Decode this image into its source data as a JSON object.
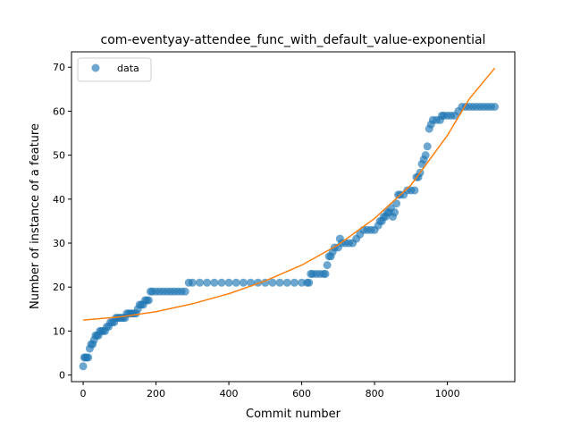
{
  "chart_data": {
    "type": "scatter",
    "title": "com-eventyay-attendee_func_with_default_value-exponential",
    "xlabel": "Commit number",
    "ylabel": "Number of instance of a feature",
    "xlim": [
      -32,
      1185
    ],
    "ylim": [
      -1.5,
      73.5
    ],
    "xticks": [
      0,
      200,
      400,
      600,
      800,
      1000
    ],
    "yticks": [
      0,
      10,
      20,
      30,
      40,
      50,
      60,
      70
    ],
    "grid": false,
    "legend": {
      "position": "upper-left",
      "entries": [
        "data"
      ]
    },
    "colors": {
      "data": "#1f77b4",
      "fit": "#ff7f0e"
    },
    "series": [
      {
        "name": "data",
        "kind": "scatter",
        "points": [
          [
            0,
            2
          ],
          [
            3,
            4
          ],
          [
            6,
            4
          ],
          [
            10,
            4
          ],
          [
            14,
            4
          ],
          [
            18,
            6
          ],
          [
            22,
            7
          ],
          [
            26,
            7
          ],
          [
            30,
            8
          ],
          [
            34,
            9
          ],
          [
            38,
            9
          ],
          [
            42,
            9
          ],
          [
            46,
            10
          ],
          [
            50,
            10
          ],
          [
            55,
            10
          ],
          [
            60,
            10
          ],
          [
            65,
            11
          ],
          [
            70,
            11
          ],
          [
            75,
            12
          ],
          [
            80,
            12
          ],
          [
            85,
            12
          ],
          [
            90,
            13
          ],
          [
            95,
            13
          ],
          [
            100,
            13
          ],
          [
            105,
            13
          ],
          [
            110,
            13
          ],
          [
            115,
            13
          ],
          [
            120,
            14
          ],
          [
            125,
            14
          ],
          [
            130,
            14
          ],
          [
            135,
            14
          ],
          [
            140,
            14
          ],
          [
            145,
            14
          ],
          [
            150,
            15
          ],
          [
            155,
            16
          ],
          [
            160,
            16
          ],
          [
            165,
            16
          ],
          [
            170,
            17
          ],
          [
            175,
            17
          ],
          [
            180,
            17
          ],
          [
            185,
            19
          ],
          [
            190,
            19
          ],
          [
            200,
            19
          ],
          [
            210,
            19
          ],
          [
            220,
            19
          ],
          [
            230,
            19
          ],
          [
            240,
            19
          ],
          [
            250,
            19
          ],
          [
            260,
            19
          ],
          [
            270,
            19
          ],
          [
            280,
            19
          ],
          [
            290,
            21
          ],
          [
            300,
            21
          ],
          [
            320,
            21
          ],
          [
            340,
            21
          ],
          [
            360,
            21
          ],
          [
            380,
            21
          ],
          [
            400,
            21
          ],
          [
            420,
            21
          ],
          [
            440,
            21
          ],
          [
            460,
            21
          ],
          [
            480,
            21
          ],
          [
            500,
            21
          ],
          [
            520,
            21
          ],
          [
            540,
            21
          ],
          [
            560,
            21
          ],
          [
            580,
            21
          ],
          [
            600,
            21
          ],
          [
            615,
            21
          ],
          [
            620,
            21
          ],
          [
            625,
            23
          ],
          [
            630,
            23
          ],
          [
            640,
            23
          ],
          [
            650,
            23
          ],
          [
            660,
            23
          ],
          [
            665,
            23
          ],
          [
            670,
            25
          ],
          [
            675,
            27
          ],
          [
            680,
            27
          ],
          [
            685,
            28
          ],
          [
            690,
            29
          ],
          [
            700,
            29
          ],
          [
            705,
            31
          ],
          [
            710,
            30
          ],
          [
            720,
            30
          ],
          [
            730,
            30
          ],
          [
            740,
            30
          ],
          [
            750,
            31
          ],
          [
            760,
            32
          ],
          [
            770,
            33
          ],
          [
            780,
            33
          ],
          [
            790,
            33
          ],
          [
            800,
            33
          ],
          [
            810,
            34
          ],
          [
            815,
            35
          ],
          [
            820,
            35
          ],
          [
            825,
            36
          ],
          [
            830,
            36
          ],
          [
            835,
            37
          ],
          [
            840,
            37
          ],
          [
            845,
            38
          ],
          [
            850,
            36
          ],
          [
            855,
            37
          ],
          [
            860,
            39
          ],
          [
            865,
            41
          ],
          [
            870,
            41
          ],
          [
            880,
            41
          ],
          [
            890,
            42
          ],
          [
            900,
            42
          ],
          [
            910,
            42
          ],
          [
            915,
            45
          ],
          [
            920,
            45
          ],
          [
            925,
            46
          ],
          [
            930,
            48
          ],
          [
            935,
            49
          ],
          [
            940,
            50
          ],
          [
            945,
            52
          ],
          [
            950,
            56
          ],
          [
            955,
            57
          ],
          [
            960,
            58
          ],
          [
            970,
            58
          ],
          [
            980,
            58
          ],
          [
            985,
            59
          ],
          [
            990,
            59
          ],
          [
            1000,
            59
          ],
          [
            1010,
            59
          ],
          [
            1020,
            59
          ],
          [
            1030,
            60
          ],
          [
            1040,
            61
          ],
          [
            1050,
            61
          ],
          [
            1060,
            61
          ],
          [
            1070,
            61
          ],
          [
            1080,
            61
          ],
          [
            1090,
            61
          ],
          [
            1100,
            61
          ],
          [
            1110,
            61
          ],
          [
            1120,
            61
          ],
          [
            1130,
            61
          ]
        ]
      },
      {
        "name": "",
        "kind": "line",
        "points": [
          [
            0,
            12.5
          ],
          [
            100,
            13.2
          ],
          [
            200,
            14.4
          ],
          [
            300,
            16.2
          ],
          [
            400,
            18.5
          ],
          [
            500,
            21.4
          ],
          [
            600,
            25.0
          ],
          [
            700,
            29.6
          ],
          [
            800,
            35.6
          ],
          [
            900,
            43.2
          ],
          [
            1000,
            54.5
          ],
          [
            1060,
            62.8
          ],
          [
            1130,
            69.8
          ]
        ]
      }
    ]
  }
}
